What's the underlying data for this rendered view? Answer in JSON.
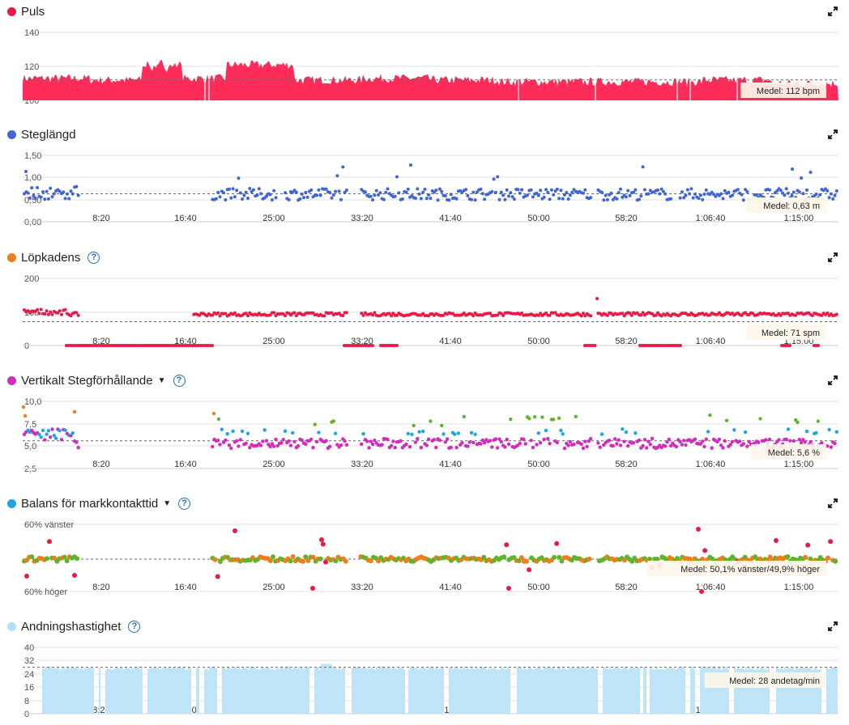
{
  "x_ticks": [
    "8:20",
    "16:40",
    "25:00",
    "33:20",
    "41:40",
    "50:00",
    "58:20",
    "1:06:40",
    "1:15:00"
  ],
  "panels": [
    {
      "id": "puls",
      "title": "Puls",
      "color": "#ea1a47",
      "help": false,
      "caret": false
    },
    {
      "id": "steg",
      "title": "Steglängd",
      "color": "#3f66d8",
      "help": false,
      "caret": false
    },
    {
      "id": "kadens",
      "title": "Löpkadens",
      "color": "#f07c1a",
      "help": true,
      "caret": false
    },
    {
      "id": "vert",
      "title": "Vertikalt Stegförhållande",
      "color": "#d12cbb",
      "help": true,
      "caret": true
    },
    {
      "id": "balans",
      "title": "Balans för markkontakttid",
      "color": "#1ea5e6",
      "help": true,
      "caret": true
    },
    {
      "id": "andning",
      "title": "Andningshastighet",
      "color": "#b3dff7",
      "help": true,
      "caret": false
    }
  ],
  "chart_data": [
    {
      "type": "area",
      "title": "Puls",
      "yticks": [
        "140",
        "120",
        "100"
      ],
      "ylim": [
        100,
        140
      ],
      "average": 112,
      "average_label": "Medel: 112 bpm",
      "x_range_minutes": [
        0,
        78.5
      ],
      "y_level_by_segment": [
        113,
        112,
        113,
        121,
        112,
        113,
        112,
        111,
        111,
        111,
        112,
        110
      ]
    },
    {
      "type": "scatter",
      "title": "Steglängd",
      "yticks": [
        "1,50",
        "1,00",
        "0,50",
        "0,00"
      ],
      "ylim": [
        0,
        1.5
      ],
      "average": 0.63,
      "average_label": "Medel: 0,63 m"
    },
    {
      "type": "scatter",
      "title": "Löpkadens",
      "yticks": [
        "200",
        "100",
        "0"
      ],
      "ylim": [
        0,
        200
      ],
      "average": 71,
      "average_label": "Medel: 71 spm"
    },
    {
      "type": "scatter",
      "title": "Vertikalt Stegförhållande",
      "yticks": [
        "10,0",
        "7,5",
        "5,0",
        "2,5"
      ],
      "ylim": [
        2.5,
        10
      ],
      "average": 5.6,
      "average_label": "Medel: 5,6 %"
    },
    {
      "type": "scatter",
      "title": "Balans för markkontakttid",
      "yticks": [
        "60% vänster",
        "60% höger"
      ],
      "average": 50.1,
      "average_label": "Medel: 50,1% vänster/49,9% höger"
    },
    {
      "type": "area",
      "title": "Andningshastighet",
      "yticks": [
        "40",
        "32",
        "24",
        "16",
        "8",
        "0"
      ],
      "ylim": [
        0,
        40
      ],
      "average": 28,
      "average_label": "Medel: 28 andetag/min"
    }
  ]
}
